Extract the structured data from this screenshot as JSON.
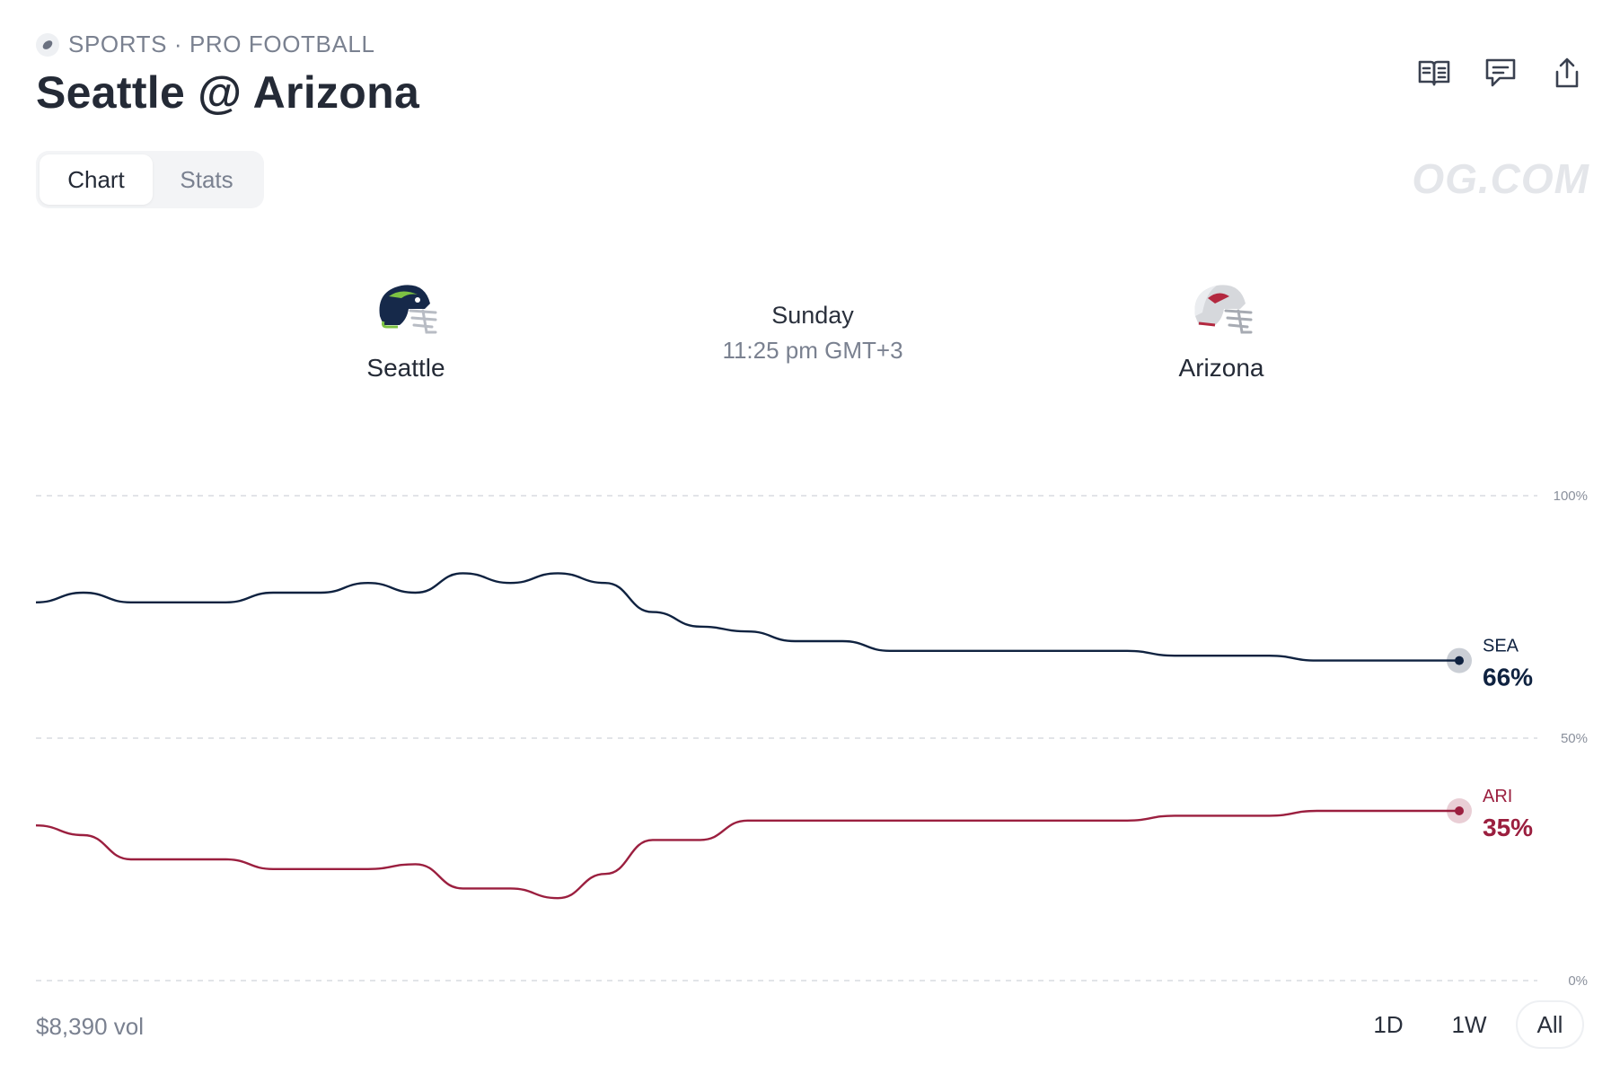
{
  "header": {
    "breadcrumb": "SPORTS · PRO FOOTBALL",
    "title": "Seattle @ Arizona",
    "actions": [
      {
        "icon": "book-open-icon"
      },
      {
        "icon": "comment-icon"
      },
      {
        "icon": "share-icon"
      }
    ]
  },
  "tabs": [
    {
      "label": "Chart",
      "active": true
    },
    {
      "label": "Stats",
      "active": false
    }
  ],
  "watermark": "OG.COM",
  "matchup": {
    "home": {
      "name": "Seattle",
      "icon": "seahawks-helmet-icon",
      "color": "#0f2240",
      "accent": "#7dc243"
    },
    "away": {
      "name": "Arizona",
      "icon": "cardinals-helmet-icon",
      "color": "#9b1f3f"
    },
    "day": "Sunday",
    "time": "11:25 pm GMT+3"
  },
  "chart_data": {
    "type": "line",
    "ylim": [
      0,
      100
    ],
    "y_ticks": [
      "100%",
      "50%",
      "0%"
    ],
    "grid": true,
    "x": [
      0,
      1,
      2,
      3,
      4,
      5,
      6,
      7,
      8,
      9,
      10,
      11,
      12,
      13,
      14,
      15,
      16,
      17,
      18,
      19,
      20,
      21,
      22,
      23,
      24,
      25,
      26,
      27,
      28,
      29,
      30
    ],
    "series": [
      {
        "name": "SEA",
        "color": "#0f2240",
        "values": [
          78,
          80,
          78,
          78,
          78,
          80,
          80,
          82,
          80,
          84,
          82,
          84,
          82,
          76,
          73,
          72,
          70,
          70,
          68,
          68,
          68,
          68,
          68,
          68,
          67,
          67,
          67,
          66,
          66,
          66,
          66
        ],
        "current_label": "66%"
      },
      {
        "name": "ARI",
        "color": "#9b1f3f",
        "values": [
          32,
          30,
          25,
          25,
          25,
          23,
          23,
          23,
          24,
          19,
          19,
          17,
          22,
          29,
          29,
          33,
          33,
          33,
          33,
          33,
          33,
          33,
          33,
          33,
          34,
          34,
          34,
          35,
          35,
          35,
          35
        ],
        "current_label": "35%"
      }
    ]
  },
  "footer": {
    "volume": "$8,390 vol",
    "ranges": [
      {
        "label": "1D",
        "active": false
      },
      {
        "label": "1W",
        "active": false
      },
      {
        "label": "All",
        "active": true
      }
    ]
  }
}
